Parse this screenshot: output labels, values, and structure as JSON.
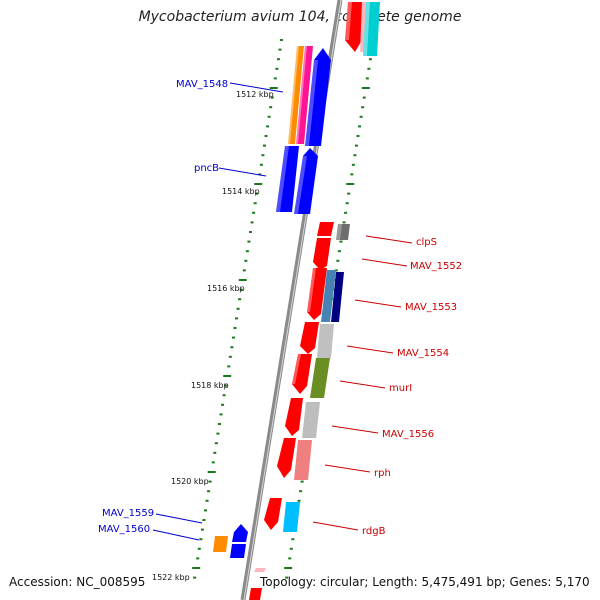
{
  "title": "Mycobacterium avium 104, complete genome",
  "footer": {
    "accession": "Accession: NC_008595",
    "topology": "Topology: circular; Length: 5,475,491 bp; Genes: 5,170"
  },
  "colors": {
    "backbone": "#8a8a8a",
    "ticks": "#1a7a1a",
    "label_left": "#0000cc",
    "label_right": "#cc0000",
    "red": "#ff0000",
    "blue": "#0000ff",
    "orange": "#ff8c00",
    "magenta": "#ff1493",
    "gray": "#808080",
    "lightgray": "#c0c0c0",
    "olive": "#6b8e23",
    "steelblue": "#4682b4",
    "navy": "#000080",
    "salmon": "#f08080",
    "cyan": "#00bfff"
  },
  "kbp_ticks": [
    "1512 kbp",
    "1514 kbp",
    "1516 kbp",
    "1518 kbp",
    "1520 kbp",
    "1522 kbp"
  ],
  "left_labels": [
    "MAV_1548",
    "pncB",
    "MAV_1559",
    "MAV_1560"
  ],
  "right_labels": [
    "clpS",
    "MAV_1552",
    "MAV_1553",
    "MAV_1554",
    "murI",
    "MAV_1556",
    "rph",
    "rdgB"
  ]
}
